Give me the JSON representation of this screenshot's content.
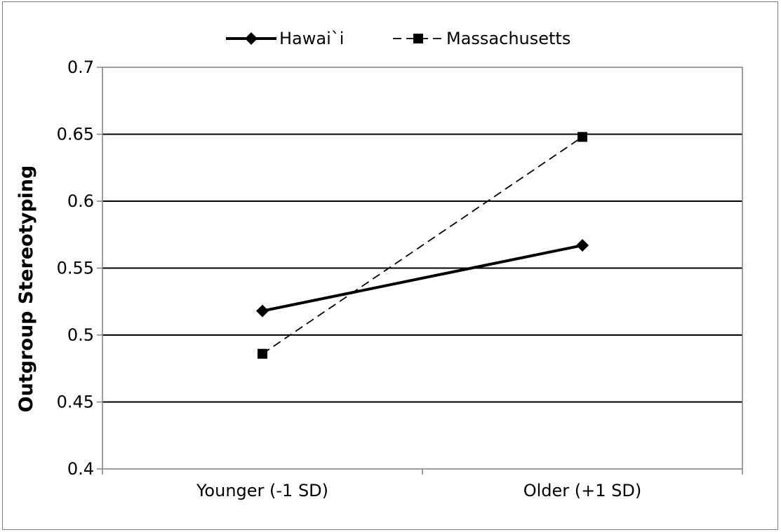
{
  "chart_data": {
    "type": "line",
    "title": "",
    "xlabel": "",
    "ylabel": "Outgroup Stereotyping",
    "categories": [
      "Younger (-1 SD)",
      "Older (+1 SD)"
    ],
    "ylim": [
      0.4,
      0.7
    ],
    "yticks": [
      0.4,
      0.45,
      0.5,
      0.55,
      0.6,
      0.65,
      0.7
    ],
    "ytick_labels": [
      "0.4",
      "0.45",
      "0.5",
      "0.55",
      "0.6",
      "0.65",
      "0.7"
    ],
    "grid": true,
    "legend_position": "top",
    "series": [
      {
        "name": "Hawai`i",
        "values": [
          0.518,
          0.567
        ],
        "marker": "diamond",
        "line_style": "solid",
        "color": "#000000"
      },
      {
        "name": "Massachusetts",
        "values": [
          0.486,
          0.648
        ],
        "marker": "square",
        "line_style": "dashed",
        "color": "#000000"
      }
    ]
  }
}
